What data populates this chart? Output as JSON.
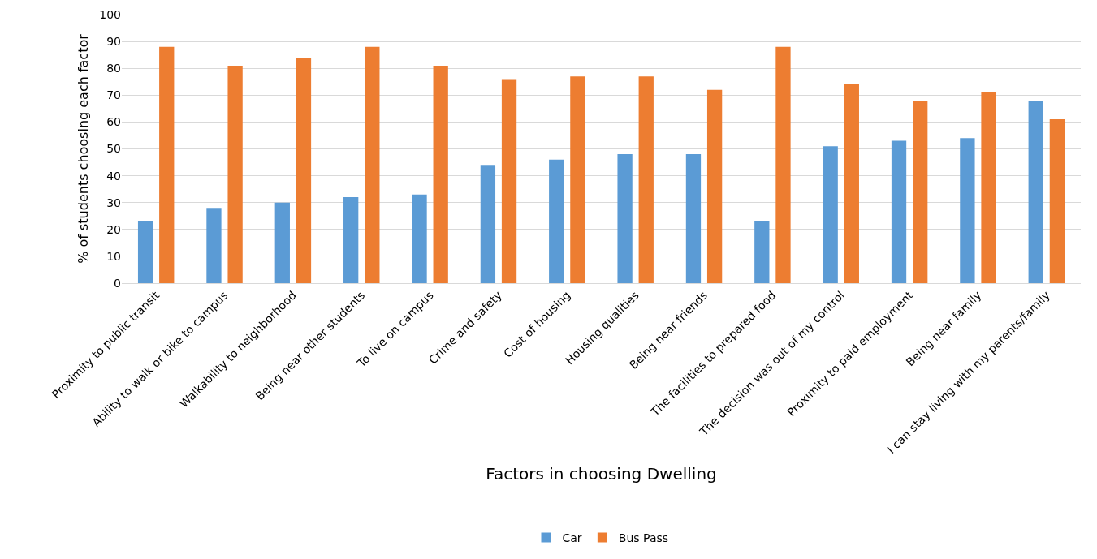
{
  "chart_data": {
    "type": "bar",
    "xlabel": "Factors in choosing Dwelling",
    "ylabel": "% of students choosing each factor",
    "categories": [
      "Proximity to public transit",
      "Ability to walk or bike to campus",
      "Walkability to neighborhood",
      "Being near other students",
      "To live on campus",
      "Crime and safety",
      "Cost of housing",
      "Housing qualities",
      "Being near friends",
      "The facilities to prepared food",
      "The decision was out of my control",
      "Proximity to paid employment",
      "Being near family",
      "I can stay living with my parents/family"
    ],
    "series": [
      {
        "name": "Car",
        "color": "#5b9bd5",
        "values": [
          23,
          28,
          30,
          32,
          33,
          44,
          46,
          48,
          48,
          23,
          51,
          53,
          54,
          68
        ]
      },
      {
        "name": "Bus Pass",
        "color": "#ed7d31",
        "values": [
          88,
          81,
          84,
          88,
          81,
          76,
          77,
          77,
          72,
          88,
          74,
          68,
          71,
          61
        ]
      }
    ],
    "ylim": [
      0,
      100
    ],
    "yticks": [
      0,
      10,
      20,
      30,
      40,
      50,
      60,
      70,
      80,
      90,
      100
    ],
    "grid": "y",
    "legend": "bottom"
  }
}
